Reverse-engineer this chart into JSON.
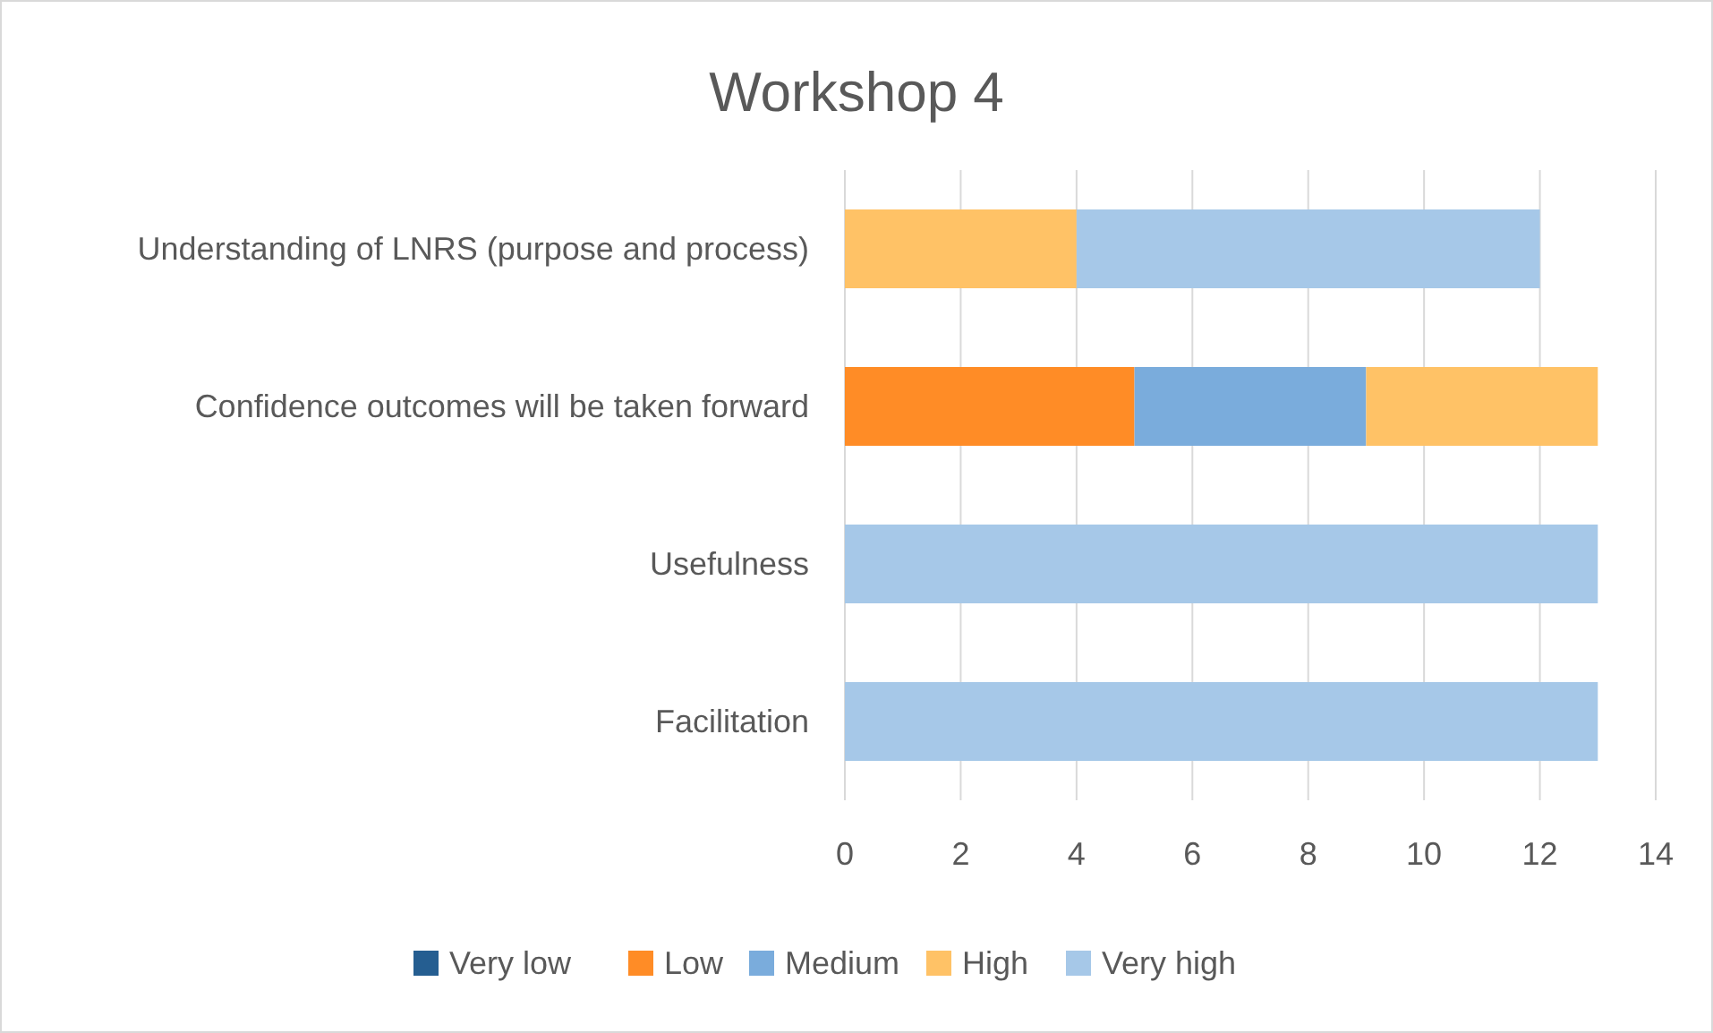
{
  "chart_data": {
    "type": "bar",
    "title": "Workshop 4",
    "orientation": "horizontal",
    "stacked": true,
    "categories": [
      "Understanding of LNRS (purpose and process)",
      "Confidence outcomes will be taken forward",
      "Usefulness",
      "Facilitation"
    ],
    "series": [
      {
        "name": "Very low",
        "color": "#255e91",
        "values": [
          0,
          0,
          0,
          0
        ]
      },
      {
        "name": "Low",
        "color": "#ff8c26",
        "values": [
          0,
          5,
          0,
          0
        ]
      },
      {
        "name": "Medium",
        "color": "#7aacdc",
        "values": [
          0,
          4,
          0,
          0
        ]
      },
      {
        "name": "High",
        "color": "#ffc266",
        "values": [
          4,
          4,
          0,
          0
        ]
      },
      {
        "name": "Very high",
        "color": "#a6c8e8",
        "values": [
          8,
          0,
          13,
          13
        ]
      }
    ],
    "xlim": [
      0,
      14
    ],
    "xticks": [
      0,
      2,
      4,
      6,
      8,
      10,
      12,
      14
    ],
    "grid": "x",
    "legend": "bottom"
  }
}
